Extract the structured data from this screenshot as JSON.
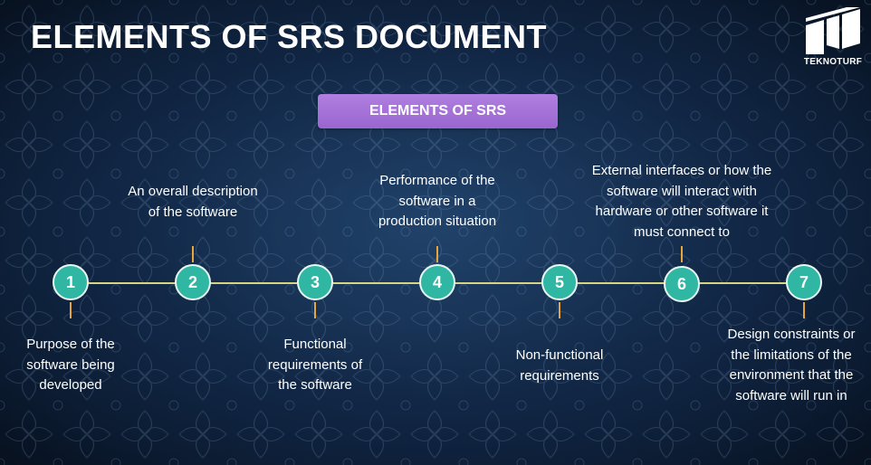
{
  "title": "ELEMENTS OF SRS DOCUMENT",
  "logo": {
    "text": "TEKNOTURF",
    "icon": "teknoturf-logo-icon"
  },
  "subtitle": "ELEMENTS OF SRS",
  "steps": [
    {
      "number": "1",
      "lines": [
        "Purpose of the",
        "software being",
        "developed"
      ]
    },
    {
      "number": "2",
      "lines": [
        "An overall description",
        "of the software"
      ]
    },
    {
      "number": "3",
      "lines": [
        "Functional",
        "requirements of",
        "the software"
      ]
    },
    {
      "number": "4",
      "lines": [
        "Performance of the",
        "software in a",
        "production situation"
      ]
    },
    {
      "number": "5",
      "lines": [
        "Non-functional",
        "requirements"
      ]
    },
    {
      "number": "6",
      "lines": [
        "External interfaces or how the",
        "software will interact with",
        "hardware or other software it",
        "must connect to"
      ]
    },
    {
      "number": "7",
      "lines": [
        "Design constraints or",
        "the limitations of the",
        "environment that the",
        "software will run in"
      ]
    }
  ],
  "colors": {
    "node_fill": "#2fb7a4",
    "timeline": "#d9d47f",
    "connector": "#e6a53d",
    "pill": "#9a66cf"
  }
}
